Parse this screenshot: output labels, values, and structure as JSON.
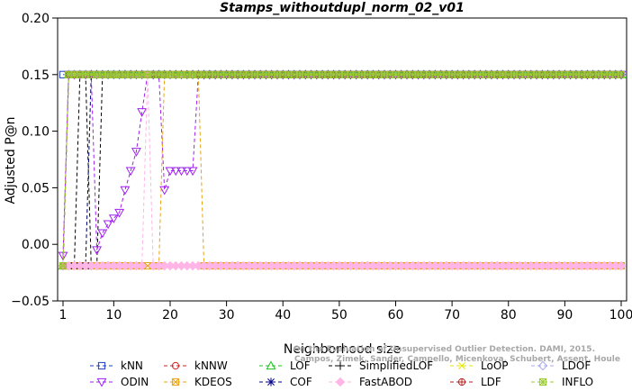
{
  "chart_data": {
    "type": "line",
    "title": "Stamps_withoutdupl_norm_02_v01",
    "xlabel": "Neighborhood size",
    "ylabel": "Adjusted P@n",
    "xlim": [
      1,
      100
    ],
    "ylim": [
      -0.05,
      0.2
    ],
    "xticks": [
      1,
      10,
      20,
      30,
      40,
      50,
      60,
      70,
      80,
      90,
      100
    ],
    "yticks": [
      -0.05,
      0.0,
      0.05,
      0.1,
      0.15,
      0.2
    ],
    "ytick_labels": [
      "−0.05",
      "0.00",
      "0.05",
      "0.10",
      "0.15",
      "0.20"
    ],
    "grid": false,
    "legend_position": "bottom",
    "series": [
      {
        "name": "kNN",
        "color": "#1f3fbf",
        "marker": "square",
        "points": [
          [
            1,
            0.15
          ],
          [
            100,
            0.15
          ]
        ]
      },
      {
        "name": "kNNW",
        "color": "#d11f1f",
        "marker": "circle",
        "points": [
          [
            1,
            -0.019
          ],
          [
            2,
            0.15
          ],
          [
            100,
            0.15
          ]
        ]
      },
      {
        "name": "LOF",
        "color": "#19c419",
        "marker": "triangle-up",
        "points": [
          [
            1,
            -0.019
          ],
          [
            2,
            0.15
          ],
          [
            100,
            0.15
          ]
        ]
      },
      {
        "name": "SimplifiedLOF",
        "color": "#000000",
        "marker": "plus",
        "points": [
          [
            1,
            -0.019
          ],
          [
            2,
            -0.019
          ],
          [
            3,
            -0.019
          ],
          [
            4,
            0.15
          ],
          [
            5,
            0.15
          ],
          [
            6,
            -0.019
          ],
          [
            7,
            -0.019
          ],
          [
            8,
            0.15
          ],
          [
            100,
            0.15
          ]
        ]
      },
      {
        "name": "LoOP",
        "color": "#e5e500",
        "marker": "x",
        "points": [
          [
            1,
            -0.019
          ],
          [
            5,
            -0.019
          ],
          [
            6,
            0.15
          ],
          [
            100,
            0.15
          ]
        ]
      },
      {
        "name": "LDOF",
        "color": "#a9a9f2",
        "marker": "diamond",
        "points": [
          [
            1,
            -0.019
          ],
          [
            2,
            0.15
          ],
          [
            100,
            0.15
          ]
        ]
      },
      {
        "name": "ODIN",
        "color": "#a020f0",
        "marker": "triangle-down",
        "points": [
          [
            1,
            -0.01
          ],
          [
            2,
            0.15
          ],
          [
            3,
            0.15
          ],
          [
            4,
            0.15
          ],
          [
            5,
            0.15
          ],
          [
            6,
            0.15
          ],
          [
            7,
            -0.005
          ],
          [
            8,
            0.01
          ],
          [
            9,
            0.018
          ],
          [
            10,
            0.023
          ],
          [
            11,
            0.028
          ],
          [
            12,
            0.048
          ],
          [
            13,
            0.065
          ],
          [
            14,
            0.082
          ],
          [
            15,
            0.117
          ],
          [
            16,
            0.15
          ],
          [
            17,
            0.15
          ],
          [
            18,
            0.15
          ],
          [
            19,
            0.048
          ],
          [
            20,
            0.065
          ],
          [
            21,
            0.065
          ],
          [
            22,
            0.065
          ],
          [
            23,
            0.065
          ],
          [
            24,
            0.065
          ],
          [
            25,
            0.15
          ],
          [
            100,
            0.15
          ]
        ]
      },
      {
        "name": "KDEOS",
        "color": "#e8a317",
        "marker": "square-x",
        "points": [
          [
            1,
            -0.019
          ],
          [
            18,
            -0.019
          ],
          [
            19,
            0.15
          ],
          [
            20,
            0.15
          ],
          [
            21,
            0.15
          ],
          [
            22,
            0.15
          ],
          [
            23,
            0.15
          ],
          [
            24,
            0.15
          ],
          [
            25,
            0.15
          ],
          [
            26,
            -0.019
          ],
          [
            100,
            -0.019
          ]
        ]
      },
      {
        "name": "COF",
        "color": "#00008b",
        "marker": "asterisk",
        "points": [
          [
            1,
            -0.019
          ],
          [
            5,
            -0.019
          ],
          [
            6,
            0.15
          ],
          [
            100,
            0.15
          ]
        ]
      },
      {
        "name": "FastABOD",
        "color": "#ffb6e6",
        "marker": "diamond-filled",
        "points": [
          [
            1,
            -0.019
          ],
          [
            15,
            -0.019
          ],
          [
            16,
            0.15
          ],
          [
            17,
            -0.019
          ],
          [
            100,
            -0.019
          ]
        ]
      },
      {
        "name": "LDF",
        "color": "#b22222",
        "marker": "circle-plus",
        "points": [
          [
            1,
            -0.019
          ],
          [
            2,
            0.15
          ],
          [
            100,
            0.15
          ]
        ]
      },
      {
        "name": "INFLO",
        "color": "#9acd32",
        "marker": "square-star",
        "points": [
          [
            1,
            -0.019
          ],
          [
            2,
            0.15
          ],
          [
            100,
            0.15
          ]
        ]
      }
    ],
    "watermark": [
      "Campos, Zimek, Sander, Campello, Micenkova, Schubert, Assent, Houle",
      "On the Evaluation of Unsupervised Outlier Detection. DAMI, 2015."
    ]
  }
}
